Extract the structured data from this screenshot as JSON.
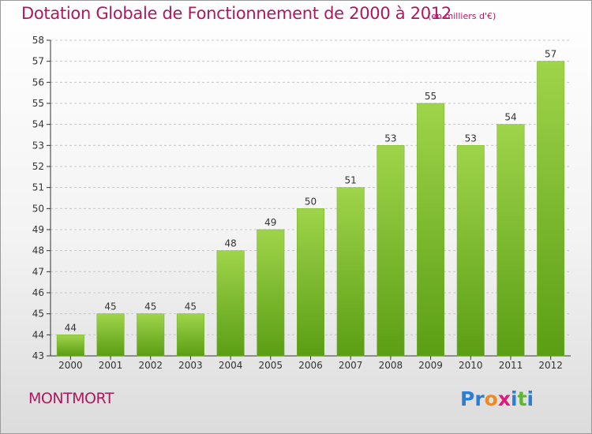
{
  "title": "Dotation Globale de Fonctionnement de 2000 à 2012",
  "subtitle": "(en milliers d'€)",
  "commune": "MONTMORT",
  "logo": {
    "text": "Proxiti",
    "letters": [
      {
        "char": "P",
        "color": "#2a7fd4"
      },
      {
        "char": "r",
        "color": "#2a7fd4"
      },
      {
        "char": "o",
        "color": "#f08a1c"
      },
      {
        "char": "x",
        "color": "#e0197d"
      },
      {
        "char": "i",
        "color": "#2a7fd4"
      },
      {
        "char": "t",
        "color": "#5cb82e"
      },
      {
        "char": "i",
        "color": "#2a7fd4"
      }
    ]
  },
  "colors": {
    "accent": "#b0175f",
    "bar_top": "#9fd44a",
    "bar_bottom": "#5a9e14",
    "grid": "#c8c8c8",
    "axis": "#333333"
  },
  "chart_data": {
    "type": "bar",
    "categories": [
      "2000",
      "2001",
      "2002",
      "2003",
      "2004",
      "2005",
      "2006",
      "2007",
      "2008",
      "2009",
      "2010",
      "2011",
      "2012"
    ],
    "values": [
      44,
      45,
      45,
      45,
      48,
      49,
      50,
      51,
      53,
      55,
      53,
      54,
      57
    ],
    "ylim": [
      43,
      58
    ],
    "yticks": [
      43,
      44,
      45,
      46,
      47,
      48,
      49,
      50,
      51,
      52,
      53,
      54,
      55,
      56,
      57,
      58
    ],
    "grid": true,
    "xlabel": "",
    "ylabel": ""
  }
}
